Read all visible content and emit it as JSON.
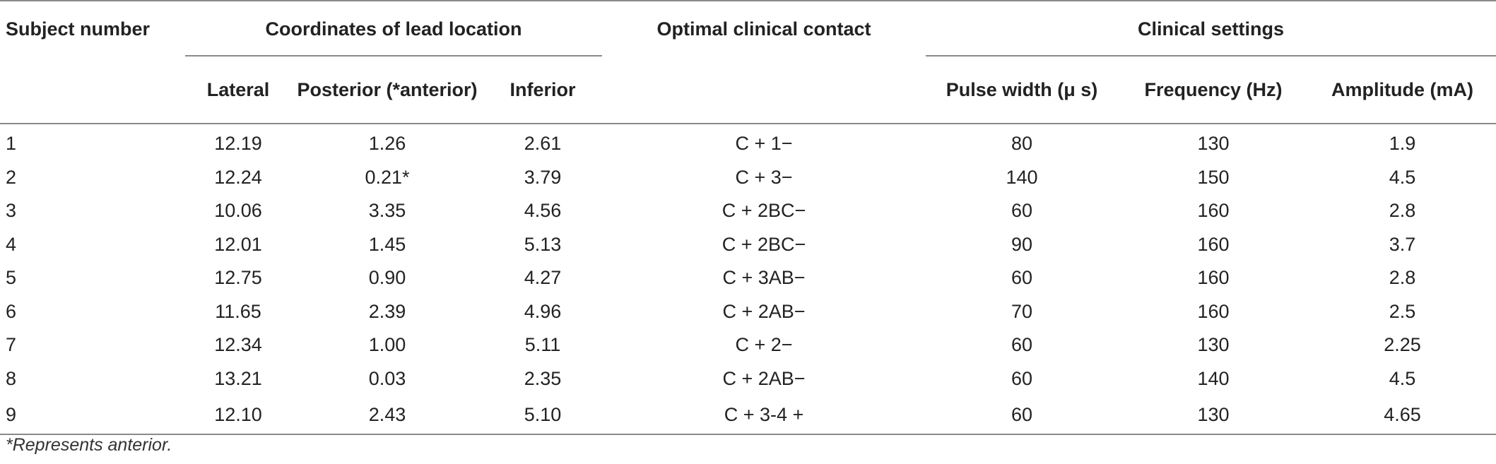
{
  "table": {
    "header_top": {
      "subject": "Subject number",
      "coords": "Coordinates of lead location",
      "contact": "Optimal clinical contact",
      "clinical": "Clinical settings"
    },
    "header_sub": {
      "lateral": "Lateral",
      "posterior": "Posterior (*anterior)",
      "inferior": "Inferior",
      "pulse": "Pulse width (μ s)",
      "frequency": "Frequency (Hz)",
      "amplitude": "Amplitude (mA)"
    },
    "rows": [
      {
        "subject": "1",
        "lateral": "12.19",
        "posterior": "1.26",
        "inferior": "2.61",
        "contact": "C + 1−",
        "pulse": "80",
        "frequency": "130",
        "amplitude": "1.9"
      },
      {
        "subject": "2",
        "lateral": "12.24",
        "posterior": "0.21*",
        "inferior": "3.79",
        "contact": "C + 3−",
        "pulse": "140",
        "frequency": "150",
        "amplitude": "4.5"
      },
      {
        "subject": "3",
        "lateral": "10.06",
        "posterior": "3.35",
        "inferior": "4.56",
        "contact": "C + 2BC−",
        "pulse": "60",
        "frequency": "160",
        "amplitude": "2.8"
      },
      {
        "subject": "4",
        "lateral": "12.01",
        "posterior": "1.45",
        "inferior": "5.13",
        "contact": "C + 2BC−",
        "pulse": "90",
        "frequency": "160",
        "amplitude": "3.7"
      },
      {
        "subject": "5",
        "lateral": "12.75",
        "posterior": "0.90",
        "inferior": "4.27",
        "contact": "C + 3AB−",
        "pulse": "60",
        "frequency": "160",
        "amplitude": "2.8"
      },
      {
        "subject": "6",
        "lateral": "11.65",
        "posterior": "2.39",
        "inferior": "4.96",
        "contact": "C + 2AB−",
        "pulse": "70",
        "frequency": "160",
        "amplitude": "2.5"
      },
      {
        "subject": "7",
        "lateral": "12.34",
        "posterior": "1.00",
        "inferior": "5.11",
        "contact": "C + 2−",
        "pulse": "60",
        "frequency": "130",
        "amplitude": "2.25"
      },
      {
        "subject": "8",
        "lateral": "13.21",
        "posterior": "0.03",
        "inferior": "2.35",
        "contact": "C + 2AB−",
        "pulse": "60",
        "frequency": "140",
        "amplitude": "4.5"
      },
      {
        "subject": "9",
        "lateral": "12.10",
        "posterior": "2.43",
        "inferior": "5.10",
        "contact": "C + 3-4 +",
        "pulse": "60",
        "frequency": "130",
        "amplitude": "4.65"
      }
    ],
    "footnote": "*Represents anterior."
  }
}
